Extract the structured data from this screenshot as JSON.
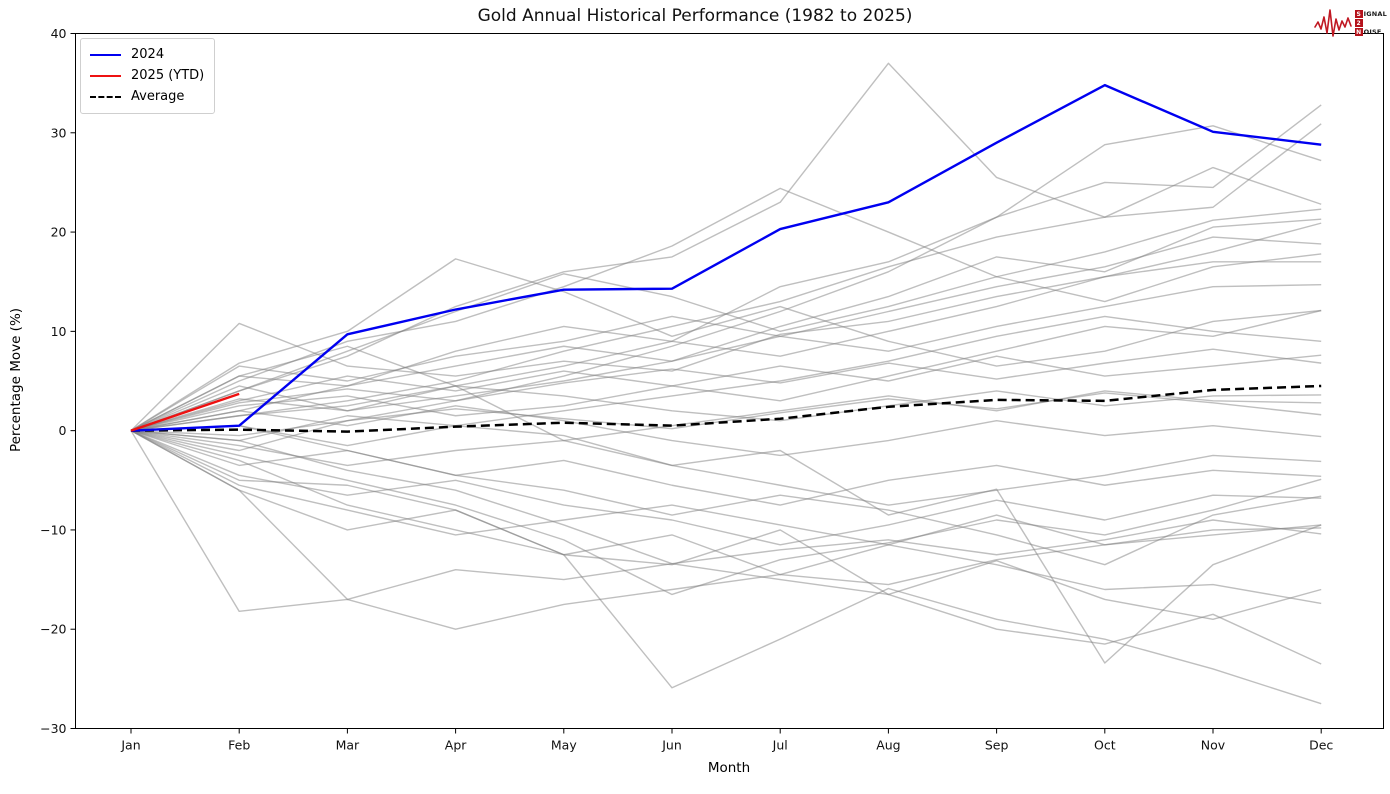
{
  "title": "Gold Annual Historical Performance (1982 to 2025)",
  "axes": {
    "xlabel": "Month",
    "ylabel": "Percentage Move (%)"
  },
  "logo": {
    "badge1": "S",
    "rest1": "IGNAL",
    "badge2": "2",
    "badge3": "N",
    "rest3": "OISE",
    "wave_color": "#c01822"
  },
  "chart_data": {
    "type": "line",
    "title": "Gold Annual Historical Performance (1982 to 2025)",
    "xlabel": "Month",
    "ylabel": "Percentage Move (%)",
    "categories": [
      "Jan",
      "Feb",
      "Mar",
      "Apr",
      "May",
      "Jun",
      "Jul",
      "Aug",
      "Sep",
      "Oct",
      "Nov",
      "Dec"
    ],
    "ylim": [
      -30,
      40
    ],
    "yticks": [
      -30,
      -20,
      -10,
      0,
      10,
      20,
      30,
      40
    ],
    "grid": false,
    "legend_position": "upper-left",
    "series": [
      {
        "name": "2024",
        "color": "#0000f0",
        "width": 2.4,
        "dash": "",
        "values": [
          0,
          0.5,
          9.7,
          12.2,
          14.2,
          14.3,
          20.3,
          23.0,
          29.0,
          34.8,
          30.1,
          28.8
        ]
      },
      {
        "name": "2025 (YTD)",
        "color": "#ee1111",
        "width": 2.4,
        "dash": "",
        "values": [
          0,
          3.7
        ]
      },
      {
        "name": "Average",
        "color": "#000000",
        "width": 2.5,
        "dash": "9,5",
        "values": [
          0,
          0.1,
          -0.1,
          0.4,
          0.8,
          0.5,
          1.2,
          2.4,
          3.1,
          3.0,
          4.1,
          4.5
        ]
      }
    ],
    "background_series": {
      "note": "Unlabeled gray lines: one per historical year 1982-2023, cumulative % move from January",
      "color": "#808080",
      "opacity": 0.5,
      "width": 1.4,
      "values": [
        [
          0,
          -5,
          -5.5,
          -8,
          -12.5,
          -25.9,
          -21,
          -15.9,
          -19,
          -21,
          -24,
          -27.5
        ],
        [
          0,
          4,
          7.5,
          12.5,
          16,
          17.5,
          23,
          37,
          25.5,
          21.5,
          26.5,
          22.8
        ],
        [
          0,
          10.8,
          6.5,
          5.5,
          7,
          6,
          9.7,
          11,
          13.5,
          15.5,
          18,
          20.9
        ],
        [
          0,
          2,
          4.5,
          8,
          10.5,
          9,
          14.5,
          17,
          21.5,
          25,
          24.5,
          32.8
        ],
        [
          0,
          -2,
          1,
          3,
          5.5,
          8.5,
          12,
          16,
          21.5,
          28.8,
          30.7,
          27.2
        ],
        [
          0,
          6.8,
          10,
          17.3,
          14,
          9.5,
          12.5,
          9,
          6.5,
          8,
          11,
          12.1
        ],
        [
          0,
          1.5,
          3,
          5,
          8,
          10.5,
          13,
          16.5,
          19.5,
          21.5,
          22.5,
          30.9
        ],
        [
          0,
          4,
          8,
          12,
          15.8,
          13.5,
          10,
          12.5,
          15.5,
          13,
          16.5,
          17.8
        ],
        [
          0,
          5,
          9,
          11,
          14.5,
          18.6,
          24.4,
          20,
          15.5,
          18,
          21.2,
          22.3
        ],
        [
          0,
          5.5,
          8.5,
          4.5,
          -1,
          -3.5,
          -2,
          -8.5,
          -5.9,
          -23.4,
          -13.5,
          -9.5
        ],
        [
          0,
          -1,
          -4,
          -6,
          -9.5,
          -13.4,
          -15,
          -16.5,
          -13.1,
          -17,
          -19,
          -16
        ],
        [
          0,
          -3,
          -7.5,
          -10,
          -12.5,
          -10.5,
          -14.5,
          -11.5,
          -13.5,
          -16,
          -15.5,
          -17.4
        ],
        [
          0,
          -6,
          -10,
          -8,
          -12.5,
          -13.5,
          -10,
          -16.5,
          -20,
          -21.5,
          -18.5,
          -23.5
        ],
        [
          0,
          -18.2,
          -17,
          -20,
          -17.5,
          -16,
          -14.5,
          -15.5,
          -13,
          -11.5,
          -10.5,
          -9.5
        ],
        [
          0,
          -6,
          -17,
          -14,
          -15,
          -13.4,
          -12,
          -11,
          -12.5,
          -11,
          -9,
          -10.4
        ],
        [
          0,
          -2.5,
          -5,
          -7.5,
          -11,
          -16.5,
          -13,
          -11.3,
          -9,
          -10.5,
          -8,
          -4.9
        ],
        [
          0,
          0.5,
          -2,
          -4.5,
          -3,
          -5.5,
          -7.5,
          -5,
          -3.5,
          -5.5,
          -4,
          -4.6
        ],
        [
          0,
          2.5,
          3.5,
          1.5,
          2.5,
          4.5,
          6.5,
          5,
          7.5,
          5.5,
          6.5,
          7.6
        ],
        [
          0,
          1.5,
          2.5,
          4.5,
          3.5,
          2,
          1,
          2.5,
          4,
          2.5,
          3.5,
          3.6
        ],
        [
          0,
          -1.5,
          -3.5,
          -2,
          -1,
          0.5,
          2,
          3.5,
          2,
          4,
          3,
          2.8
        ],
        [
          0,
          3,
          5.5,
          4,
          6,
          4.5,
          3,
          5.5,
          8,
          10.5,
          9.5,
          12.1
        ],
        [
          0,
          4.5,
          2,
          3.5,
          5,
          7,
          9.5,
          8,
          10.5,
          12.5,
          14.5,
          14.7
        ],
        [
          0,
          6.5,
          5,
          7.5,
          9,
          11.5,
          9.5,
          12,
          14.5,
          16.5,
          19.5,
          18.8
        ],
        [
          0,
          5.5,
          4.5,
          6.5,
          8.5,
          7,
          10.5,
          13.5,
          17.5,
          16,
          20.5,
          21.3
        ],
        [
          0,
          -4.5,
          -6.5,
          -5,
          -7.5,
          -9,
          -11.5,
          -9.5,
          -7,
          -9,
          -6.5,
          -6.8
        ],
        [
          0,
          -5.5,
          -8,
          -10.5,
          -9,
          -7.5,
          -9.5,
          -11.5,
          -8.5,
          -11.5,
          -10,
          -9.8
        ],
        [
          0,
          2,
          0.5,
          2.5,
          1,
          -1,
          -2.5,
          -1,
          1,
          -0.5,
          0.5,
          -0.6
        ],
        [
          0,
          -1,
          1.5,
          0.5,
          2,
          3.5,
          5,
          7,
          9.5,
          11.5,
          10,
          9
        ],
        [
          0,
          0.5,
          -1.5,
          0.5,
          -0.5,
          -3.5,
          -5.5,
          -7.5,
          -6,
          -4.5,
          -2.5,
          -3.1
        ],
        [
          0,
          3.2,
          2,
          4.5,
          6.5,
          9,
          7.5,
          10,
          12.5,
          15.5,
          17,
          17
        ],
        [
          0,
          -3.5,
          -2,
          -4.5,
          -6,
          -8.5,
          -6.5,
          -8,
          -10.5,
          -13.5,
          -8.5,
          -6.6
        ],
        [
          0,
          2.8,
          4.2,
          3,
          4.8,
          6.2,
          4.8,
          6.8,
          5.2,
          6.8,
          8.2,
          6.8
        ],
        [
          0,
          -0.5,
          1,
          2.2,
          1.2,
          0.2,
          1.8,
          3.2,
          2.2,
          3.8,
          2.8,
          1.6
        ]
      ]
    }
  }
}
